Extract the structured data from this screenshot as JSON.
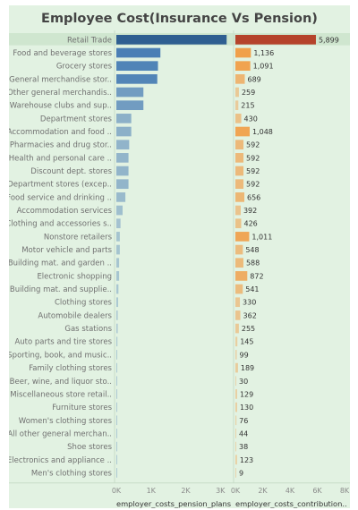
{
  "title": "Employee Cost(Insurance Vs Pension)",
  "chart_data": {
    "type": "bar",
    "orientation": "horizontal",
    "categories": [
      "Retail Trade",
      "Food and beverage stores",
      "Grocery stores",
      "General merchandise stor..",
      "Other general merchandis..",
      "Warehouse clubs and sup..",
      "Department stores",
      "Accommodation and food ..",
      "Pharmacies and drug stor..",
      "Health and personal care ..",
      "Discount dept. stores",
      "Department stores (excep..",
      "Food service and drinking ..",
      "Accommodation services",
      "Clothing and accessories s..",
      "Nonstore retailers",
      "Motor vehicle and parts",
      "Building mat. and garden ..",
      "Electronic shopping",
      "Building mat. and supplie..",
      "Clothing stores",
      "Automobile dealers",
      "Gas stations",
      "Auto parts and tire stores",
      "Sporting, book, and music..",
      "Family clothing stores",
      "Beer, wine, and liquor sto..",
      "Miscellaneous store retail..",
      "Furniture stores",
      "Women's clothing stores",
      "All other general merchan..",
      "Shoe stores",
      "Electronics and appliance ..",
      "Men's clothing stores"
    ],
    "series": [
      {
        "name": "employer_costs_pension_plans",
        "axis_title": "employer_costs_pension_plans",
        "color": "#4b7fb5",
        "highlight_color": "#2f5f91",
        "xlim": [
          0,
          3200
        ],
        "ticks": [
          0,
          1000,
          2000,
          3000
        ],
        "tick_labels": [
          "0K",
          "1K",
          "2K",
          "3K"
        ],
        "show_value_labels": false,
        "values": [
          3180,
          1270,
          1200,
          1180,
          780,
          780,
          430,
          430,
          370,
          350,
          350,
          350,
          260,
          180,
          120,
          100,
          100,
          80,
          80,
          60,
          50,
          40,
          40,
          30,
          20,
          20,
          15,
          15,
          10,
          10,
          8,
          8,
          5,
          3
        ]
      },
      {
        "name": "employer_costs_contribution_insurance",
        "axis_title": "employer_costs_contribution..",
        "color": "#f0a04b",
        "highlight_color": "#b5432b",
        "xlim": [
          0,
          8000
        ],
        "ticks": [
          0,
          2000,
          4000,
          6000,
          8000
        ],
        "tick_labels": [
          "0K",
          "2K",
          "4K",
          "6K",
          "8K"
        ],
        "show_value_labels": true,
        "values": [
          5899,
          1136,
          1091,
          689,
          259,
          215,
          430,
          1048,
          592,
          592,
          592,
          592,
          656,
          392,
          426,
          1011,
          548,
          588,
          872,
          541,
          330,
          362,
          255,
          145,
          99,
          189,
          30,
          129,
          130,
          76,
          44,
          38,
          123,
          9
        ]
      }
    ],
    "highlighted_category": "Retail Trade",
    "grid": false,
    "legend": "none"
  }
}
